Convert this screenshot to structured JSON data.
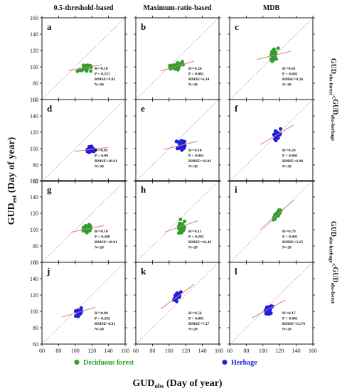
{
  "figure": {
    "col_titles": [
      "0.5-threshold-based",
      "Maximum-ratio-based",
      "MDB"
    ],
    "y_axis_title": {
      "main": "GUD",
      "sub": "est",
      "rest": " (Day of year)"
    },
    "x_axis_title": {
      "main": "GUD",
      "sub": "obs",
      "rest": " (Day of year)"
    },
    "row_group_titles": [
      {
        "p1": "GUD",
        "s1": "obs-forest",
        "op": "<",
        "p2": "GUD",
        "s2": "obs-herbage"
      },
      {
        "p1": "GUD",
        "s1": "obs-herbage",
        "op": "<",
        "p2": "GUD",
        "s2": "obs-forest"
      }
    ],
    "legend": [
      {
        "label": "Deciduous forest",
        "color": "#2ca02c"
      },
      {
        "label": "Herbage",
        "color": "#1f1fdd"
      }
    ],
    "colors": {
      "forest": "#2ca02c",
      "herbage": "#1f1fdd",
      "fit_line": "#e8747c",
      "one_to_one": "#999999"
    }
  },
  "chart_data": [
    {
      "type": "scatter",
      "panel": "a",
      "row": 0,
      "col": 0,
      "series": "forest",
      "center": [
        112,
        99
      ],
      "spread": [
        7,
        4
      ],
      "slope": 0.18,
      "n": 30,
      "stats": {
        "r2": "R²=0.10",
        "p": "P = 0.321",
        "rmse": "RMSE=9.92",
        "n": "N=30"
      },
      "xlim": [
        60,
        160
      ],
      "ylim": [
        60,
        160
      ]
    },
    {
      "type": "scatter",
      "panel": "b",
      "row": 0,
      "col": 1,
      "series": "forest",
      "center": [
        110,
        101
      ],
      "spread": [
        7,
        4
      ],
      "slope": 0.3,
      "n": 30,
      "stats": {
        "r2": "R²=0.26",
        "p": "P < 0.001",
        "rmse": "RMSE=6.34",
        "n": "N=30"
      },
      "xlim": [
        60,
        160
      ],
      "ylim": [
        60,
        160
      ]
    },
    {
      "type": "scatter",
      "panel": "c",
      "row": 0,
      "col": 2,
      "series": "forest",
      "center": [
        113,
        114
      ],
      "spread": [
        4,
        6
      ],
      "slope": 0.25,
      "n": 30,
      "stats": {
        "r2": "R²=0.01",
        "p": "P < 0.001",
        "rmse": "RMSE=8.26",
        "n": "N=30"
      },
      "xlim": [
        60,
        160
      ],
      "ylim": [
        60,
        160
      ]
    },
    {
      "type": "scatter",
      "panel": "d",
      "row": 1,
      "col": 0,
      "series": "herbage",
      "center": [
        119,
        99
      ],
      "spread": [
        5,
        3
      ],
      "slope": 0.12,
      "n": 30,
      "stats": {
        "r2": "R²=0.01",
        "p": "P = 0.09",
        "rmse": "RMSE=20.91",
        "n": "N=30"
      },
      "xlim": [
        60,
        160
      ],
      "ylim": [
        60,
        160
      ]
    },
    {
      "type": "scatter",
      "panel": "e",
      "row": 1,
      "col": 1,
      "series": "herbage",
      "center": [
        114,
        104
      ],
      "spread": [
        5,
        6
      ],
      "slope": 0.25,
      "n": 30,
      "stats": {
        "r2": "R²=0.10",
        "p": "P < 0.001",
        "rmse": "RMSE=16.01",
        "n": "N=30"
      },
      "xlim": [
        60,
        160
      ],
      "ylim": [
        60,
        160
      ]
    },
    {
      "type": "scatter",
      "panel": "f",
      "row": 1,
      "col": 2,
      "series": "herbage",
      "center": [
        117,
        117
      ],
      "spread": [
        4,
        6
      ],
      "slope": 0.6,
      "n": 30,
      "stats": {
        "r2": "R²=0.29",
        "p": "P < 0.001",
        "rmse": "RMSE=6.96",
        "n": "N=30"
      },
      "xlim": [
        60,
        160
      ],
      "ylim": [
        60,
        160
      ]
    },
    {
      "type": "scatter",
      "panel": "g",
      "row": 2,
      "col": 0,
      "series": "forest",
      "center": [
        115,
        101
      ],
      "spread": [
        5,
        4
      ],
      "slope": 0.2,
      "n": 28,
      "stats": {
        "r2": "R²=0.10",
        "p": "P = 0.288",
        "rmse": "RMSE=18.91",
        "n": "N=28"
      },
      "xlim": [
        60,
        160
      ],
      "ylim": [
        60,
        160
      ]
    },
    {
      "type": "scatter",
      "panel": "h",
      "row": 2,
      "col": 1,
      "series": "forest",
      "center": [
        115,
        104
      ],
      "spread": [
        4,
        7
      ],
      "slope": 0.35,
      "n": 28,
      "stats": {
        "r2": "R²=0.11",
        "p": "P = 0.285",
        "rmse": "RMSE=16.44",
        "n": "N=28"
      },
      "xlim": [
        60,
        160
      ],
      "ylim": [
        60,
        160
      ]
    },
    {
      "type": "scatter",
      "panel": "i",
      "row": 2,
      "col": 2,
      "series": "forest",
      "center": [
        117,
        118
      ],
      "spread": [
        4,
        4
      ],
      "slope": 0.9,
      "n": 28,
      "stats": {
        "r2": "R²=0.79",
        "p": "P < 0.001",
        "rmse": "RMSE=3.25",
        "n": "N=28"
      },
      "xlim": [
        60,
        160
      ],
      "ylim": [
        60,
        160
      ]
    },
    {
      "type": "scatter",
      "panel": "j",
      "row": 3,
      "col": 0,
      "series": "herbage",
      "center": [
        104,
        99
      ],
      "spread": [
        4,
        5
      ],
      "slope": 0.3,
      "n": 28,
      "stats": {
        "r2": "R²=0.09",
        "p": "P = 0.292",
        "rmse": "RMSE=8.91",
        "n": "N=28"
      },
      "xlim": [
        60,
        160
      ],
      "ylim": [
        60,
        160
      ]
    },
    {
      "type": "scatter",
      "panel": "k",
      "row": 3,
      "col": 1,
      "series": "herbage",
      "center": [
        110,
        118
      ],
      "spread": [
        4,
        4
      ],
      "slope": 0.75,
      "n": 28,
      "stats": {
        "r2": "R²=0.56",
        "p": "P < 0.001",
        "rmse": "RMSE=7.37",
        "n": "N=28"
      },
      "xlim": [
        60,
        160
      ],
      "ylim": [
        60,
        160
      ]
    },
    {
      "type": "scatter",
      "panel": "l",
      "row": 3,
      "col": 2,
      "series": "herbage",
      "center": [
        107,
        103
      ],
      "spread": [
        4,
        6
      ],
      "slope": 0.55,
      "n": 28,
      "stats": {
        "r2": "R²=0.17",
        "p": "P < 0.001",
        "rmse": "RMSE=13.74",
        "n": "N=28"
      },
      "xlim": [
        60,
        160
      ],
      "ylim": [
        60,
        160
      ]
    }
  ],
  "ticks": {
    "x": [
      60,
      80,
      100,
      120,
      140,
      160
    ],
    "y": [
      60,
      80,
      100,
      120,
      140,
      160
    ]
  }
}
